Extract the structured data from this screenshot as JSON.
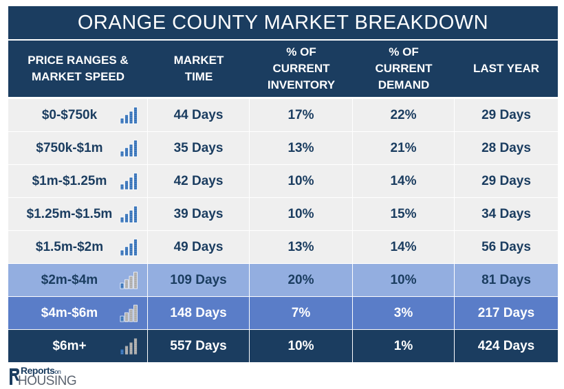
{
  "title": "ORANGE COUNTY MARKET BREAKDOWN",
  "headers": [
    "PRICE RANGES &\nMARKET SPEED",
    "MARKET\nTIME",
    "% OF\nCURRENT\nINVENTORY",
    "% OF\nCURRENT\nDEMAND",
    "LAST YEAR"
  ],
  "rows": [
    {
      "range": "$0-$750k",
      "market_time": "44 Days",
      "inventory": "17%",
      "demand": "22%",
      "last_year": "29 Days",
      "speed_level": 4
    },
    {
      "range": "$750k-$1m",
      "market_time": "35 Days",
      "inventory": "13%",
      "demand": "21%",
      "last_year": "28 Days",
      "speed_level": 4
    },
    {
      "range": "$1m-$1.25m",
      "market_time": "42 Days",
      "inventory": "10%",
      "demand": "14%",
      "last_year": "29 Days",
      "speed_level": 4
    },
    {
      "range": "$1.25m-$1.5m",
      "market_time": "39 Days",
      "inventory": "10%",
      "demand": "15%",
      "last_year": "34 Days",
      "speed_level": 4
    },
    {
      "range": "$1.5m-$2m",
      "market_time": "49 Days",
      "inventory": "13%",
      "demand": "14%",
      "last_year": "56 Days",
      "speed_level": 4
    },
    {
      "range": "$2m-$4m",
      "market_time": "109 Days",
      "inventory": "20%",
      "demand": "10%",
      "last_year": "81 Days",
      "speed_level": 1
    },
    {
      "range": "$4m-$6m",
      "market_time": "148 Days",
      "inventory": "7%",
      "demand": "3%",
      "last_year": "217 Days",
      "speed_level": 1
    },
    {
      "range": "$6m+",
      "market_time": "557 Days",
      "inventory": "10%",
      "demand": "1%",
      "last_year": "424 Days",
      "speed_level": 1
    }
  ],
  "logo": {
    "top": "Reports",
    "on": "on",
    "bottom": "HOUSING"
  },
  "colors": {
    "navy": "#1b3d60",
    "light_row": "#efefef",
    "mid_blue": "#93aee0",
    "blue": "#5a7dc8",
    "icon_blue": "#2e6db6",
    "icon_gray": "#a9a9a9"
  }
}
